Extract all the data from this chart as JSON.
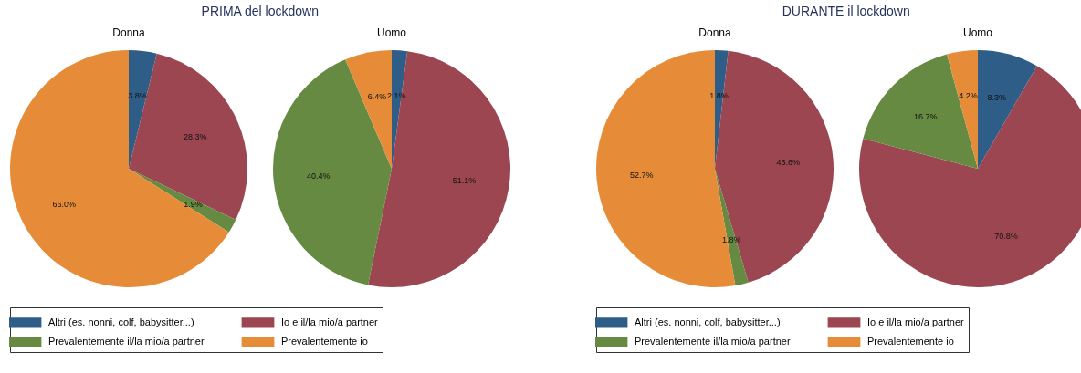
{
  "chart_data": [
    {
      "type": "pie",
      "title": "PRIMA del lockdown",
      "legend": "bottom",
      "categories": [
        "Altri (es. nonni, colf, babysitter...)",
        "Io e il/la mio/a partner",
        "Prevalentemente il/la mio/a partner",
        "Prevalentemente io"
      ],
      "colors": [
        "#2e5d87",
        "#9b4650",
        "#668a41",
        "#e68c39"
      ],
      "series": [
        {
          "name": "Donna",
          "values": [
            3.8,
            28.3,
            1.9,
            66.0
          ],
          "value_labels": [
            "3.8%",
            "28.3%",
            "1.9%",
            "66.0%"
          ]
        },
        {
          "name": "Uomo",
          "values": [
            2.1,
            51.1,
            40.4,
            6.4
          ],
          "value_labels": [
            "2.1%",
            "51.1%",
            "40.4%",
            "6.4%"
          ]
        }
      ]
    },
    {
      "type": "pie",
      "title": "DURANTE il lockdown",
      "legend": "bottom",
      "categories": [
        "Altri (es. nonni, colf, babysitter...)",
        "Io e il/la mio/a partner",
        "Prevalentemente il/la mio/a partner",
        "Prevalentemente io"
      ],
      "colors": [
        "#2e5d87",
        "#9b4650",
        "#668a41",
        "#e68c39"
      ],
      "series": [
        {
          "name": "Donna",
          "values": [
            1.8,
            43.6,
            1.8,
            52.7
          ],
          "value_labels": [
            "1.8%",
            "43.6%",
            "1.8%",
            "52.7%"
          ]
        },
        {
          "name": "Uomo",
          "values": [
            8.3,
            70.8,
            16.7,
            4.2
          ],
          "value_labels": [
            "8.3%",
            "70.8%",
            "16.7%",
            "4.2%"
          ]
        }
      ]
    }
  ]
}
